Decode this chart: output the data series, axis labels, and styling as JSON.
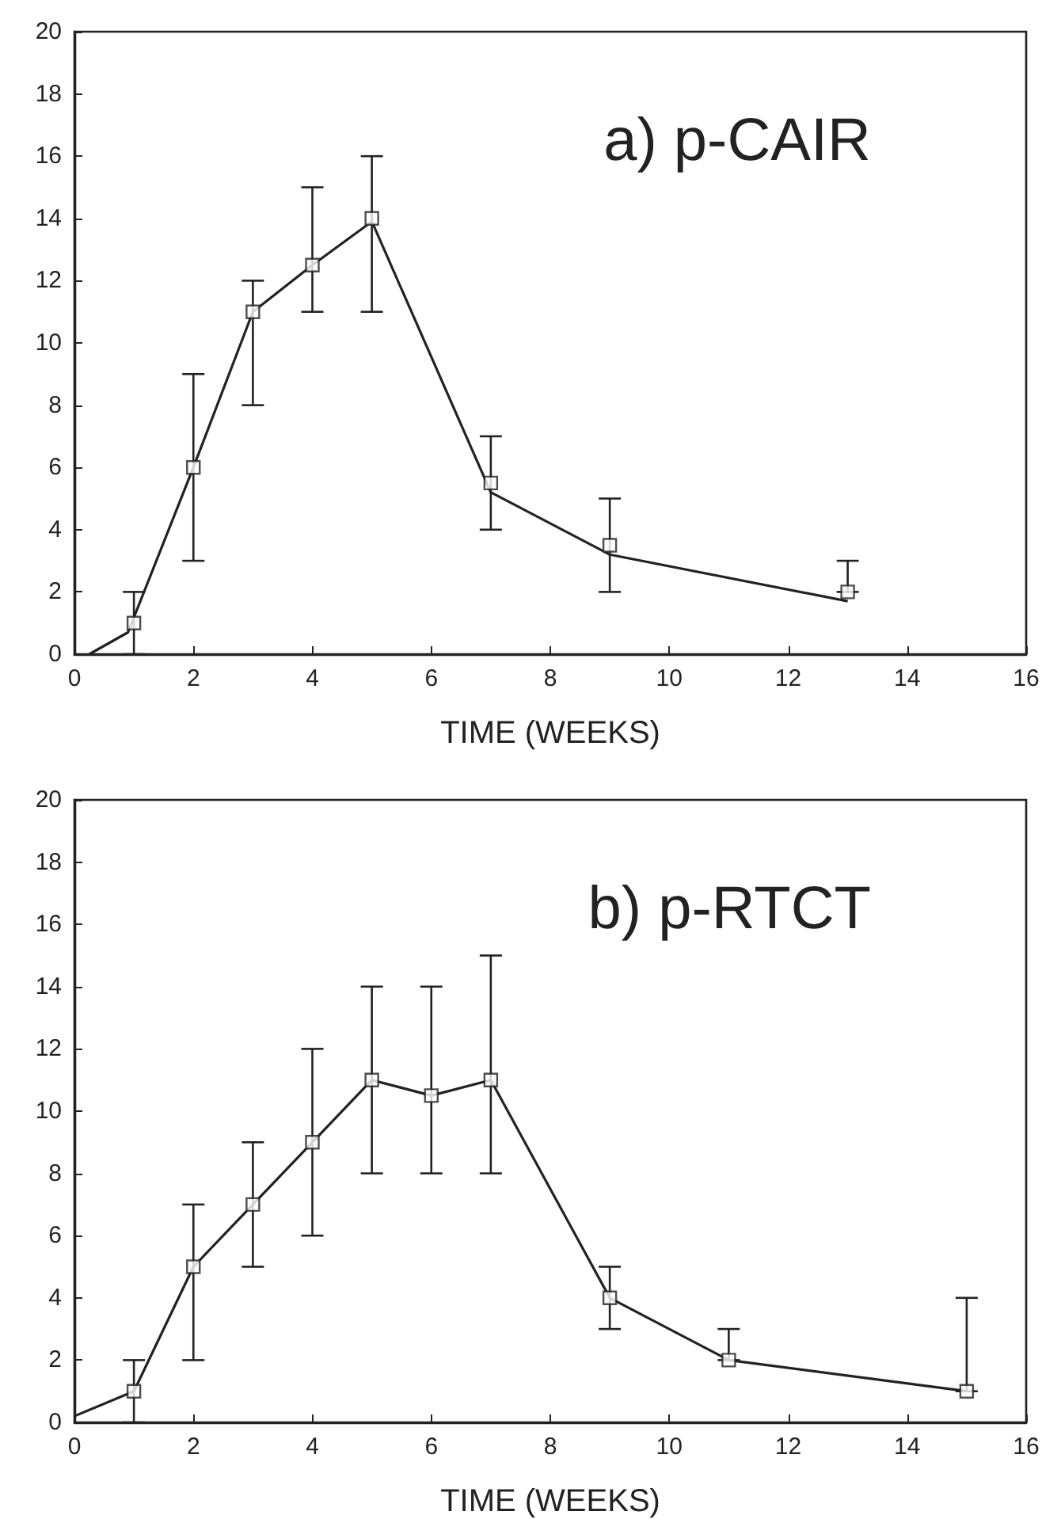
{
  "chart_data": [
    {
      "type": "scatter",
      "annotations": [
        "a) p-CAIR"
      ],
      "xlabel": "TIME (WEEKS)",
      "xlim": [
        0,
        16
      ],
      "xticks": [
        0,
        2,
        4,
        6,
        8,
        10,
        12,
        14,
        16
      ],
      "ylim": [
        0,
        20
      ],
      "yticks": [
        0,
        2,
        4,
        6,
        8,
        10,
        12,
        14,
        16,
        18,
        20
      ],
      "grid": false,
      "series": [
        {
          "color": "#222222",
          "marker": "square",
          "x": [
            1,
            2,
            3,
            4,
            5,
            7,
            9,
            13
          ],
          "values": [
            1,
            6,
            11,
            12.5,
            14,
            5.5,
            3.5,
            2
          ],
          "errors": [
            [
              0,
              2
            ],
            [
              3,
              9
            ],
            [
              8,
              12
            ],
            [
              11,
              15
            ],
            [
              11,
              16
            ],
            [
              4,
              7
            ],
            [
              2,
              5
            ],
            [
              2,
              3
            ]
          ]
        },
        {
          "type": "line",
          "color": "#222222",
          "marker": "none",
          "line_style": "solid",
          "x": [
            0.25,
            0.9,
            2,
            3,
            4,
            5,
            7,
            9,
            13
          ],
          "values": [
            0,
            0.7,
            6,
            11,
            12.5,
            13.9,
            5.2,
            3.2,
            1.7
          ]
        }
      ]
    },
    {
      "type": "scatter",
      "annotations": [
        "b) p-RTCT"
      ],
      "xlabel": "TIME (WEEKS)",
      "xlim": [
        0,
        16
      ],
      "xticks": [
        0,
        2,
        4,
        6,
        8,
        10,
        12,
        14,
        16
      ],
      "ylim": [
        0,
        20
      ],
      "yticks": [
        0,
        2,
        4,
        6,
        8,
        10,
        12,
        14,
        16,
        18,
        20
      ],
      "grid": false,
      "series": [
        {
          "color": "#222222",
          "marker": "square",
          "x": [
            1,
            2,
            3,
            4,
            5,
            6,
            7,
            9,
            11,
            15
          ],
          "values": [
            1,
            5,
            7,
            9,
            11,
            10.5,
            11,
            4,
            2,
            1
          ],
          "errors": [
            [
              0,
              2
            ],
            [
              2,
              7
            ],
            [
              5,
              9
            ],
            [
              6,
              12
            ],
            [
              8,
              14
            ],
            [
              8,
              14
            ],
            [
              8,
              15
            ],
            [
              3,
              5
            ],
            [
              2,
              3
            ],
            [
              1,
              4
            ]
          ]
        },
        {
          "type": "line",
          "color": "#222222",
          "marker": "none",
          "line_style": "solid",
          "x": [
            0,
            1,
            2,
            3,
            4,
            5,
            6,
            7,
            9,
            11,
            15
          ],
          "values": [
            0.2,
            1,
            5,
            7,
            9,
            11,
            10.5,
            11,
            4,
            2,
            1
          ]
        }
      ]
    }
  ]
}
